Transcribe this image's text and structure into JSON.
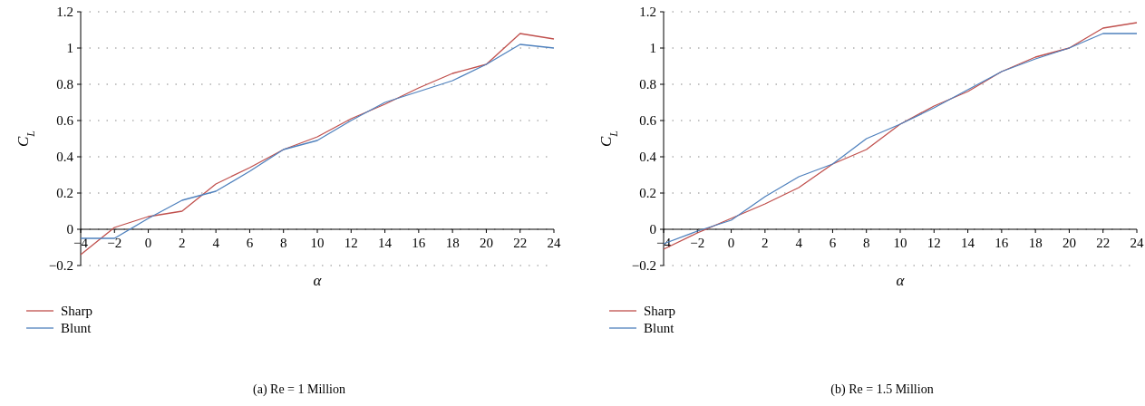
{
  "chart_data": [
    {
      "type": "line",
      "title": "(a)  Re = 1 Million",
      "xlabel": "α",
      "ylabel": "C$_{L}$",
      "x": [
        -4,
        -2,
        0,
        2,
        4,
        6,
        8,
        10,
        12,
        14,
        16,
        18,
        20,
        22,
        24
      ],
      "xlim": [
        -4,
        24
      ],
      "xticks": [
        -4,
        -2,
        0,
        2,
        4,
        6,
        8,
        10,
        12,
        14,
        16,
        18,
        20,
        22,
        24
      ],
      "ylim": [
        -0.2,
        1.2
      ],
      "yticks": [
        -0.2,
        0,
        0.2,
        0.4,
        0.6,
        0.8,
        1,
        1.2
      ],
      "grid": "y",
      "legend": "bottom left",
      "line_style": "solid",
      "marker": "none",
      "series": [
        {
          "name": "Sharp",
          "color": "#c0504d",
          "values": [
            -0.14,
            0.01,
            0.07,
            0.1,
            0.25,
            0.34,
            0.44,
            0.51,
            0.61,
            0.69,
            0.78,
            0.86,
            0.91,
            1.08,
            1.05
          ]
        },
        {
          "name": "Blunt",
          "color": "#4f81bd",
          "values": [
            -0.05,
            -0.05,
            0.06,
            0.16,
            0.21,
            0.32,
            0.44,
            0.49,
            0.6,
            0.7,
            0.76,
            0.82,
            0.91,
            1.02,
            1
          ]
        }
      ]
    },
    {
      "type": "line",
      "title": "(b)  Re = 1.5 Million",
      "xlabel": "α",
      "ylabel": "C$_{L}$",
      "x": [
        -4,
        -2,
        0,
        2,
        4,
        6,
        8,
        10,
        12,
        14,
        16,
        18,
        20,
        22,
        24
      ],
      "xlim": [
        -4,
        24
      ],
      "xticks": [
        -4,
        -2,
        0,
        2,
        4,
        6,
        8,
        10,
        12,
        14,
        16,
        18,
        20,
        22,
        24
      ],
      "ylim": [
        -0.2,
        1.2
      ],
      "yticks": [
        -0.2,
        0,
        0.2,
        0.4,
        0.6,
        0.8,
        1,
        1.2
      ],
      "grid": "y",
      "legend": "bottom left",
      "line_style": "solid",
      "marker": "none",
      "series": [
        {
          "name": "Sharp",
          "color": "#c0504d",
          "values": [
            -0.11,
            -0.02,
            0.06,
            0.14,
            0.23,
            0.36,
            0.44,
            0.58,
            0.68,
            0.76,
            0.87,
            0.95,
            1,
            1.11,
            1.14
          ]
        },
        {
          "name": "Blunt",
          "color": "#4f81bd",
          "values": [
            -0.08,
            -0.01,
            0.05,
            0.18,
            0.29,
            0.36,
            0.5,
            0.58,
            0.67,
            0.77,
            0.87,
            0.94,
            1,
            1.08,
            1.08
          ]
        }
      ]
    }
  ]
}
